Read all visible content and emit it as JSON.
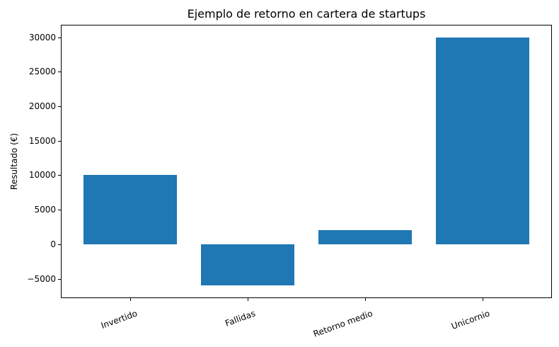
{
  "chart_data": {
    "type": "bar",
    "title": "Ejemplo de retorno en cartera de startups",
    "ylabel": "Resultado (€)",
    "xlabel": "",
    "categories": [
      "Invertido",
      "Fallidas",
      "Retorno medio",
      "Unicornio"
    ],
    "values": [
      10000,
      -6000,
      2000,
      30000
    ],
    "bar_color": "#1f77b4",
    "text_color": "#000000",
    "background_color": "#ffffff",
    "yticks": [
      30000,
      25000,
      20000,
      15000,
      10000,
      5000,
      0,
      -5000
    ],
    "ytick_labels": [
      "30000",
      "25000",
      "20000",
      "15000",
      "10000",
      "5000",
      "0",
      "−5000"
    ],
    "ylim": [
      -7800,
      31800
    ],
    "xlim": [
      -0.59,
      3.59
    ],
    "bar_width": 0.8,
    "xtick_rotation_deg": 20,
    "grid": false,
    "legend": null
  }
}
